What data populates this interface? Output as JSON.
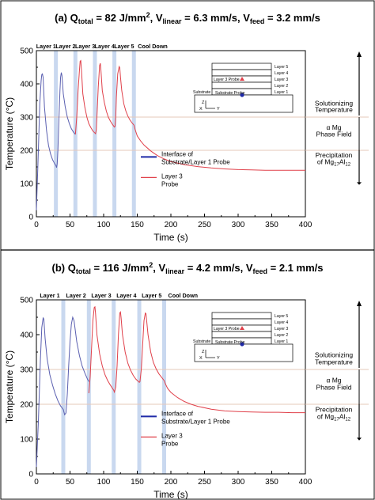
{
  "panels": [
    {
      "title": {
        "main": "(a) Q",
        "s1": "total",
        "m2": " = 82 J/mm",
        "sup": "2",
        "m3": ",  V",
        "s2": "linear",
        "m4": " = 6.3 mm/s,  V",
        "s3": "feed",
        "m5": " = 3.2 mm/s"
      },
      "layer_labels": [
        "Layer 1",
        "Layer 2",
        "Layer 3",
        "Layer 4",
        "Layer 5",
        "Cool Down"
      ],
      "legend": {
        "blue_line1": "Interface of",
        "blue_line2": "Substrate/Layer 1 Probe",
        "red_line1": "Layer 3",
        "red_line2": "Probe"
      },
      "inset": {
        "layers": [
          "Layer 5",
          "Layer 4",
          "Layer 3",
          "Layer 2",
          "Layer 1"
        ],
        "layer_probe": "Layer 3 Probe",
        "substrate_probe": "Substrate Probe",
        "substrate": "Substrate",
        "axis_z": "Z",
        "axis_x": "X",
        "axis_y": "Y"
      },
      "annotations": {
        "solutionizing1": "Solutionizing",
        "solutionizing2": "Temperature",
        "alpha1": "α Mg",
        "alpha2": "Phase Field",
        "precip1": "Precipitation",
        "precip2a": "of Mg",
        "precip2b": "17",
        "precip2c": "Al",
        "precip2d": "12"
      }
    },
    {
      "title": {
        "main": "(b) Q",
        "s1": "total",
        "m2": " = 116 J/mm",
        "sup": "2",
        "m3": ",  V",
        "s2": "linear",
        "m4": " = 4.2 mm/s,  V",
        "s3": "feed",
        "m5": " = 2.1 mm/s"
      },
      "layer_labels": [
        "Layer 1",
        "Layer 2",
        "Layer 3",
        "Layer 4",
        "Layer 5",
        "Cool Down"
      ],
      "legend": {
        "blue_line1": "Interface of",
        "blue_line2": "Substrate/Layer 1 Probe",
        "red_line1": "Layer 3",
        "red_line2": "Probe"
      },
      "inset": {
        "layers": [
          "Layer 5",
          "Layer 4",
          "Layer 3",
          "Layer 2",
          "Layer 1"
        ],
        "layer_probe": "Layer 3 Probe",
        "substrate_probe": "Substrate Probe",
        "substrate": "Substrate",
        "axis_z": "Z",
        "axis_x": "X",
        "axis_y": "Y"
      },
      "annotations": {
        "solutionizing1": "Solutionizing",
        "solutionizing2": "Temperature",
        "alpha1": "α Mg",
        "alpha2": "Phase Field",
        "precip1": "Precipitation",
        "precip2a": "of Mg",
        "precip2b": "17",
        "precip2c": "Al",
        "precip2d": "12"
      }
    }
  ],
  "colors": {
    "blue": "#5a5fb0",
    "red": "#e0404a",
    "band": "#c9d8ef",
    "ref_line": "#e6c9b8",
    "legend_blue": "#1f2aa8"
  },
  "chart_data": [
    {
      "type": "line",
      "xlabel": "Time (s)",
      "ylabel": "Temperature (°C)",
      "xlim": [
        0,
        400
      ],
      "ylim": [
        0,
        500
      ],
      "xticks": [
        0,
        50,
        100,
        150,
        200,
        250,
        300,
        350,
        400
      ],
      "yticks": [
        0,
        100,
        200,
        300,
        400,
        500
      ],
      "reference_lines": [
        300,
        200
      ],
      "layer_boundaries": [
        29,
        58,
        87,
        116,
        145
      ],
      "series": [
        {
          "name": "Interface of Substrate/Layer 1 Probe",
          "color": "blue",
          "x": [
            0,
            2,
            5,
            7,
            8,
            9,
            10,
            12,
            15,
            18,
            21,
            24,
            27,
            29,
            30,
            31,
            32,
            33,
            34,
            35,
            36,
            37,
            38,
            40,
            43,
            46,
            49,
            52,
            55,
            58
          ],
          "y": [
            20,
            140,
            340,
            410,
            428,
            430,
            420,
            330,
            260,
            215,
            190,
            172,
            160,
            154,
            148,
            160,
            200,
            260,
            320,
            380,
            420,
            434,
            425,
            370,
            330,
            300,
            280,
            265,
            255,
            248
          ]
        },
        {
          "name": "Layer 3 Probe",
          "color": "red",
          "x": [
            58,
            60,
            62,
            64,
            65,
            66,
            67,
            69,
            72,
            75,
            78,
            81,
            84,
            87,
            88,
            89,
            90,
            92,
            94,
            95,
            96,
            98,
            101,
            104,
            107,
            110,
            113,
            116,
            117,
            118,
            119,
            121,
            123,
            124,
            125,
            127,
            130,
            133,
            136,
            139,
            142,
            145,
            147,
            150,
            155,
            160,
            170,
            180,
            190,
            200,
            220,
            240,
            260,
            280,
            300,
            320,
            340,
            360,
            380,
            400
          ],
          "y": [
            248,
            300,
            380,
            440,
            468,
            470,
            440,
            370,
            330,
            300,
            280,
            268,
            258,
            252,
            250,
            262,
            300,
            390,
            455,
            462,
            440,
            380,
            345,
            318,
            300,
            288,
            278,
            270,
            272,
            300,
            360,
            430,
            452,
            448,
            420,
            380,
            340,
            318,
            303,
            292,
            283,
            276,
            262,
            243,
            228,
            216,
            198,
            184,
            174,
            166,
            157,
            151,
            147,
            144,
            142,
            141,
            140,
            140,
            140,
            140
          ]
        }
      ]
    },
    {
      "type": "line",
      "xlabel": "Time (s)",
      "ylabel": "Temperature (°C)",
      "xlim": [
        0,
        400
      ],
      "ylim": [
        0,
        500
      ],
      "xticks": [
        0,
        50,
        100,
        150,
        200,
        250,
        300,
        350,
        400
      ],
      "yticks": [
        0,
        100,
        200,
        300,
        400,
        500
      ],
      "reference_lines": [
        300,
        200
      ],
      "layer_boundaries": [
        40,
        78,
        115,
        153,
        190
      ],
      "series": [
        {
          "name": "Interface of Substrate/Layer 1 Probe",
          "color": "blue",
          "x": [
            0,
            3,
            6,
            8,
            10,
            11,
            13,
            16,
            20,
            24,
            28,
            32,
            36,
            40,
            42,
            44,
            46,
            48,
            50,
            52,
            54,
            56,
            60,
            64,
            68,
            72,
            76,
            78
          ],
          "y": [
            20,
            150,
            330,
            420,
            448,
            445,
            390,
            330,
            285,
            255,
            230,
            210,
            195,
            185,
            170,
            175,
            230,
            310,
            380,
            430,
            450,
            440,
            380,
            340,
            310,
            290,
            272,
            265
          ]
        },
        {
          "name": "Layer 3 Probe",
          "color": "red",
          "x": [
            78,
            80,
            82,
            84,
            86,
            87,
            88,
            90,
            94,
            98,
            102,
            106,
            110,
            115,
            116,
            118,
            120,
            122,
            124,
            125,
            126,
            128,
            132,
            136,
            140,
            144,
            148,
            153,
            154,
            156,
            158,
            160,
            162,
            163,
            164,
            166,
            170,
            174,
            178,
            182,
            186,
            190,
            192,
            195,
            200,
            210,
            220,
            230,
            240,
            260,
            280,
            300,
            320,
            340,
            360,
            380,
            400
          ],
          "y": [
            232,
            280,
            360,
            440,
            478,
            480,
            460,
            400,
            345,
            310,
            285,
            268,
            255,
            240,
            235,
            250,
            310,
            400,
            462,
            465,
            448,
            400,
            350,
            318,
            298,
            283,
            272,
            263,
            265,
            300,
            370,
            440,
            462,
            460,
            440,
            400,
            350,
            320,
            302,
            288,
            278,
            268,
            258,
            246,
            234,
            219,
            208,
            200,
            194,
            186,
            181,
            179,
            178,
            177,
            177,
            176,
            176
          ]
        }
      ]
    }
  ]
}
